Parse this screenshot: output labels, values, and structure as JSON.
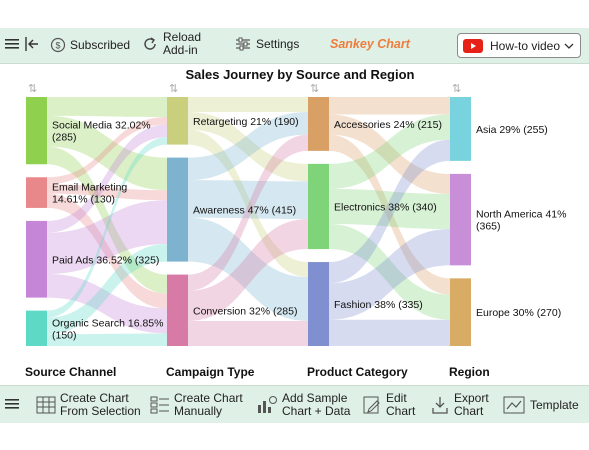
{
  "toolbar": {
    "subscribed_label": "Subscribed",
    "reload_line1": "Reload",
    "reload_line2": "Add-in",
    "settings_label": "Settings",
    "app_title": "Sankey Chart",
    "howto_label": "How-to video"
  },
  "bottom_toolbar": {
    "create_from_selection_1": "Create Chart",
    "create_from_selection_2": "From Selection",
    "create_manually_1": "Create Chart",
    "create_manually_2": "Manually",
    "add_sample_1": "Add Sample",
    "add_sample_2": "Chart + Data",
    "edit_chart_1": "Edit",
    "edit_chart_2": "Chart",
    "export_chart_1": "Export",
    "export_chart_2": "Chart",
    "template_label": "Template"
  },
  "chart_data": {
    "type": "sankey",
    "title": "Sales Journey by Source and Region",
    "columns": [
      "Source Channel",
      "Campaign Type",
      "Product Category",
      "Region"
    ],
    "nodes": [
      {
        "id": "social",
        "col": 0,
        "label": "Social Media 32.02%",
        "value_text": "(285)",
        "value": 285,
        "color": "#8fd14f"
      },
      {
        "id": "email",
        "col": 0,
        "label": "Email Marketing",
        "value_text": "14.61% (130)",
        "value": 130,
        "color": "#e8888a"
      },
      {
        "id": "paid",
        "col": 0,
        "label": "Paid Ads 36.52% (325)",
        "value_text": "",
        "value": 325,
        "color": "#c586d8"
      },
      {
        "id": "organic",
        "col": 0,
        "label": "Organic Search 16.85%",
        "value_text": "(150)",
        "value": 150,
        "color": "#5ed9c6"
      },
      {
        "id": "retarget",
        "col": 1,
        "label": "Retargeting 21% (190)",
        "value_text": "",
        "value": 190,
        "color": "#c9cf7d"
      },
      {
        "id": "aware",
        "col": 1,
        "label": "Awareness 47% (415)",
        "value_text": "",
        "value": 415,
        "color": "#7db3cf"
      },
      {
        "id": "conv",
        "col": 1,
        "label": "Conversion 32% (285)",
        "value_text": "",
        "value": 285,
        "color": "#d77ba6"
      },
      {
        "id": "acc",
        "col": 2,
        "label": "Accessories 24% (215)",
        "value_text": "",
        "value": 215,
        "color": "#d9a066"
      },
      {
        "id": "elec",
        "col": 2,
        "label": "Electronics 38% (340)",
        "value_text": "",
        "value": 340,
        "color": "#7fd47a"
      },
      {
        "id": "fash",
        "col": 2,
        "label": "Fashion 38% (335)",
        "value_text": "",
        "value": 335,
        "color": "#7f8fd0"
      },
      {
        "id": "asia",
        "col": 3,
        "label": "Asia 29% (255)",
        "value_text": "",
        "value": 255,
        "color": "#79d3df"
      },
      {
        "id": "na",
        "col": 3,
        "label": "North America 41%",
        "value_text": "(365)",
        "value": 365,
        "color": "#c88fd8"
      },
      {
        "id": "eu",
        "col": 3,
        "label": "Europe 30% (270)",
        "value_text": "",
        "value": 270,
        "color": "#d9ac66"
      }
    ],
    "links": [
      {
        "s": "social",
        "t": "retarget",
        "v": 80
      },
      {
        "s": "social",
        "t": "aware",
        "v": 130
      },
      {
        "s": "social",
        "t": "conv",
        "v": 75
      },
      {
        "s": "email",
        "t": "retarget",
        "v": 30
      },
      {
        "s": "email",
        "t": "aware",
        "v": 40
      },
      {
        "s": "email",
        "t": "conv",
        "v": 60
      },
      {
        "s": "paid",
        "t": "retarget",
        "v": 50
      },
      {
        "s": "paid",
        "t": "aware",
        "v": 175
      },
      {
        "s": "paid",
        "t": "conv",
        "v": 100
      },
      {
        "s": "organic",
        "t": "retarget",
        "v": 30
      },
      {
        "s": "organic",
        "t": "aware",
        "v": 70
      },
      {
        "s": "organic",
        "t": "conv",
        "v": 50
      },
      {
        "s": "retarget",
        "t": "acc",
        "v": 60
      },
      {
        "s": "retarget",
        "t": "elec",
        "v": 70
      },
      {
        "s": "retarget",
        "t": "fash",
        "v": 60
      },
      {
        "s": "aware",
        "t": "acc",
        "v": 90
      },
      {
        "s": "aware",
        "t": "elec",
        "v": 150
      },
      {
        "s": "aware",
        "t": "fash",
        "v": 175
      },
      {
        "s": "conv",
        "t": "acc",
        "v": 65
      },
      {
        "s": "conv",
        "t": "elec",
        "v": 120
      },
      {
        "s": "conv",
        "t": "fash",
        "v": 100
      },
      {
        "s": "acc",
        "t": "asia",
        "v": 70
      },
      {
        "s": "acc",
        "t": "na",
        "v": 80
      },
      {
        "s": "acc",
        "t": "eu",
        "v": 65
      },
      {
        "s": "elec",
        "t": "asia",
        "v": 100
      },
      {
        "s": "elec",
        "t": "na",
        "v": 140
      },
      {
        "s": "elec",
        "t": "eu",
        "v": 100
      },
      {
        "s": "fash",
        "t": "asia",
        "v": 85
      },
      {
        "s": "fash",
        "t": "na",
        "v": 145
      },
      {
        "s": "fash",
        "t": "eu",
        "v": 105
      }
    ]
  }
}
